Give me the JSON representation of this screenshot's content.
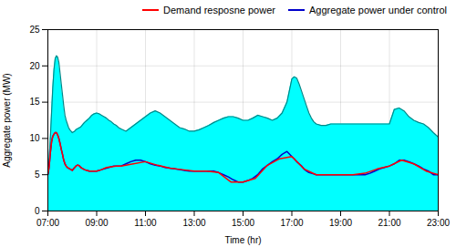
{
  "chart_data": {
    "type": "line",
    "xlabel": "Time (hr)",
    "ylabel": "Aggregate power (MW)",
    "xlim": [
      7.0,
      23.0
    ],
    "ylim": [
      0,
      25
    ],
    "xticks": [
      {
        "value": 7,
        "label": "07:00"
      },
      {
        "value": 9,
        "label": "09:00"
      },
      {
        "value": 11,
        "label": "11:00"
      },
      {
        "value": 13,
        "label": "13:00"
      },
      {
        "value": 15,
        "label": "15:00"
      },
      {
        "value": 17,
        "label": "17:00"
      },
      {
        "value": 19,
        "label": "19:00"
      },
      {
        "value": 21,
        "label": "21:00"
      },
      {
        "value": 23,
        "label": "23:00"
      }
    ],
    "yticks": [
      0,
      5,
      10,
      15,
      20,
      25
    ],
    "grid": true,
    "legend": "upper right",
    "series": [
      {
        "type": "area",
        "color": "#00FFFF",
        "x": [
          7.0,
          7.05,
          7.1,
          7.15,
          7.2,
          7.25,
          7.3,
          7.35,
          7.4,
          7.45,
          7.5,
          7.55,
          7.6,
          7.65,
          7.7,
          7.75,
          7.8,
          7.85,
          7.9,
          7.95,
          8.0,
          8.05,
          8.1,
          8.15,
          8.2,
          8.25,
          8.3,
          8.35,
          8.4,
          8.45,
          8.5,
          8.6,
          8.7,
          8.8,
          8.9,
          9.0,
          9.1,
          9.2,
          9.3,
          9.4,
          9.5,
          9.6,
          9.7,
          9.8,
          9.9,
          10.0,
          10.2,
          10.4,
          10.6,
          10.8,
          11.0,
          11.2,
          11.4,
          11.6,
          11.8,
          12.0,
          12.2,
          12.4,
          12.6,
          12.8,
          13.0,
          13.2,
          13.4,
          13.6,
          13.8,
          14.0,
          14.2,
          14.4,
          14.6,
          14.8,
          15.0,
          15.2,
          15.4,
          15.6,
          15.8,
          16.0,
          16.2,
          16.4,
          16.6,
          16.8,
          17.0,
          17.1,
          17.2,
          17.3,
          17.4,
          17.5,
          17.6,
          17.7,
          17.8,
          17.9,
          18.0,
          18.2,
          18.4,
          18.6,
          18.8,
          19.0,
          19.2,
          19.4,
          19.6,
          19.8,
          20.0,
          20.2,
          20.4,
          20.6,
          20.8,
          21.0,
          21.2,
          21.4,
          21.6,
          21.8,
          22.0,
          22.2,
          22.4,
          22.6,
          22.8,
          23.0
        ],
        "values": [
          5.0,
          7.0,
          10.0,
          13.5,
          17.0,
          19.5,
          21.0,
          21.4,
          21.2,
          20.5,
          19.0,
          17.5,
          16.0,
          14.5,
          13.2,
          12.5,
          12.0,
          11.5,
          11.2,
          11.0,
          10.8,
          10.9,
          11.0,
          11.2,
          11.3,
          11.4,
          11.5,
          11.6,
          11.8,
          12.0,
          12.2,
          12.5,
          12.8,
          13.2,
          13.4,
          13.5,
          13.4,
          13.2,
          13.0,
          12.8,
          12.5,
          12.3,
          12.0,
          11.8,
          11.5,
          11.3,
          11.0,
          11.5,
          12.0,
          12.5,
          13.0,
          13.5,
          13.8,
          13.5,
          13.0,
          12.5,
          12.0,
          11.5,
          11.3,
          11.0,
          11.0,
          11.2,
          11.5,
          11.8,
          12.2,
          12.5,
          12.8,
          13.0,
          13.0,
          12.8,
          12.5,
          12.5,
          12.8,
          13.2,
          13.0,
          12.8,
          12.5,
          12.8,
          13.5,
          15.0,
          18.2,
          18.5,
          18.3,
          17.5,
          16.5,
          15.5,
          14.5,
          13.5,
          12.8,
          12.3,
          12.0,
          11.8,
          11.8,
          12.0,
          12.0,
          12.0,
          12.0,
          12.0,
          12.0,
          12.0,
          12.0,
          12.0,
          12.0,
          12.0,
          12.0,
          12.0,
          14.0,
          14.2,
          13.8,
          13.0,
          12.5,
          12.2,
          12.0,
          11.5,
          10.8,
          10.2
        ]
      },
      {
        "type": "line",
        "color": "#008888",
        "x": [
          7.0,
          7.05,
          7.1,
          7.15,
          7.2,
          7.25,
          7.3,
          7.35,
          7.4,
          7.45,
          7.5,
          7.55,
          7.6,
          7.65,
          7.7,
          7.75,
          7.8,
          7.85,
          7.9,
          7.95,
          8.0,
          8.05,
          8.1,
          8.15,
          8.2,
          8.25,
          8.3,
          8.35,
          8.4,
          8.45,
          8.5,
          8.6,
          8.7,
          8.8,
          8.9,
          9.0,
          9.1,
          9.2,
          9.3,
          9.4,
          9.5,
          9.6,
          9.7,
          9.8,
          9.9,
          10.0,
          10.2,
          10.4,
          10.6,
          10.8,
          11.0,
          11.2,
          11.4,
          11.6,
          11.8,
          12.0,
          12.2,
          12.4,
          12.6,
          12.8,
          13.0,
          13.2,
          13.4,
          13.6,
          13.8,
          14.0,
          14.2,
          14.4,
          14.6,
          14.8,
          15.0,
          15.2,
          15.4,
          15.6,
          15.8,
          16.0,
          16.2,
          16.4,
          16.6,
          16.8,
          17.0,
          17.1,
          17.2,
          17.3,
          17.4,
          17.5,
          17.6,
          17.7,
          17.8,
          17.9,
          18.0,
          18.2,
          18.4,
          18.6,
          18.8,
          19.0,
          19.2,
          19.4,
          19.6,
          19.8,
          20.0,
          20.2,
          20.4,
          20.6,
          20.8,
          21.0,
          21.2,
          21.4,
          21.6,
          21.8,
          22.0,
          22.2,
          22.4,
          22.6,
          22.8,
          23.0
        ],
        "values": [
          5.0,
          7.0,
          10.0,
          13.5,
          17.0,
          19.5,
          21.0,
          21.4,
          21.2,
          20.5,
          19.0,
          17.5,
          16.0,
          14.5,
          13.2,
          12.5,
          12.0,
          11.5,
          11.2,
          11.0,
          10.8,
          10.9,
          11.0,
          11.2,
          11.3,
          11.4,
          11.5,
          11.6,
          11.8,
          12.0,
          12.2,
          12.5,
          12.8,
          13.2,
          13.4,
          13.5,
          13.4,
          13.2,
          13.0,
          12.8,
          12.5,
          12.3,
          12.0,
          11.8,
          11.5,
          11.3,
          11.0,
          11.5,
          12.0,
          12.5,
          13.0,
          13.5,
          13.8,
          13.5,
          13.0,
          12.5,
          12.0,
          11.5,
          11.3,
          11.0,
          11.0,
          11.2,
          11.5,
          11.8,
          12.2,
          12.5,
          12.8,
          13.0,
          13.0,
          12.8,
          12.5,
          12.5,
          12.8,
          13.2,
          13.0,
          12.8,
          12.5,
          12.8,
          13.5,
          15.0,
          18.2,
          18.5,
          18.3,
          17.5,
          16.5,
          15.5,
          14.5,
          13.5,
          12.8,
          12.3,
          12.0,
          11.8,
          11.8,
          12.0,
          12.0,
          12.0,
          12.0,
          12.0,
          12.0,
          12.0,
          12.0,
          12.0,
          12.0,
          12.0,
          12.0,
          12.0,
          14.0,
          14.2,
          13.8,
          13.0,
          12.5,
          12.2,
          12.0,
          11.5,
          10.8,
          10.2
        ]
      },
      {
        "name": "Aggregate power under control",
        "type": "line",
        "color": "#0000CC",
        "x": [
          7.0,
          7.05,
          7.1,
          7.15,
          7.2,
          7.25,
          7.3,
          7.35,
          7.4,
          7.45,
          7.5,
          7.55,
          7.6,
          7.65,
          7.7,
          7.75,
          7.8,
          7.85,
          7.9,
          7.95,
          8.0,
          8.05,
          8.1,
          8.15,
          8.2,
          8.25,
          8.3,
          8.35,
          8.4,
          8.45,
          8.5,
          8.6,
          8.7,
          8.8,
          8.9,
          9.0,
          9.1,
          9.2,
          9.3,
          9.4,
          9.5,
          9.6,
          9.7,
          9.8,
          9.9,
          10.0,
          10.2,
          10.4,
          10.6,
          10.8,
          11.0,
          11.2,
          11.4,
          11.6,
          11.8,
          12.0,
          12.2,
          12.4,
          12.6,
          12.8,
          13.0,
          13.2,
          13.4,
          13.6,
          13.8,
          14.0,
          14.2,
          14.4,
          14.6,
          14.8,
          15.0,
          15.2,
          15.4,
          15.6,
          15.8,
          16.0,
          16.2,
          16.4,
          16.6,
          16.8,
          17.0,
          17.1,
          17.2,
          17.3,
          17.4,
          17.5,
          17.6,
          17.7,
          17.8,
          17.9,
          18.0,
          18.2,
          18.4,
          18.6,
          18.8,
          19.0,
          19.2,
          19.4,
          19.6,
          19.8,
          20.0,
          20.2,
          20.4,
          20.6,
          20.8,
          21.0,
          21.2,
          21.4,
          21.6,
          21.8,
          22.0,
          22.2,
          22.4,
          22.6,
          22.8,
          23.0
        ],
        "values": [
          5.0,
          6.0,
          8.0,
          9.5,
          10.3,
          10.6,
          10.8,
          10.8,
          10.5,
          10.0,
          9.3,
          8.5,
          7.8,
          7.0,
          6.5,
          6.2,
          6.0,
          5.9,
          5.8,
          5.7,
          5.6,
          5.8,
          6.0,
          6.2,
          6.3,
          6.3,
          6.2,
          6.0,
          5.9,
          5.8,
          5.7,
          5.6,
          5.5,
          5.5,
          5.5,
          5.5,
          5.6,
          5.7,
          5.8,
          5.9,
          6.0,
          6.1,
          6.2,
          6.2,
          6.2,
          6.2,
          6.5,
          6.8,
          7.0,
          7.0,
          6.8,
          6.5,
          6.3,
          6.2,
          6.0,
          5.9,
          5.8,
          5.7,
          5.6,
          5.5,
          5.5,
          5.5,
          5.5,
          5.5,
          5.5,
          5.3,
          5.0,
          4.7,
          4.3,
          4.0,
          4.0,
          4.2,
          4.5,
          5.0,
          5.8,
          6.3,
          6.8,
          7.2,
          7.8,
          8.2,
          7.5,
          7.2,
          6.8,
          6.5,
          6.2,
          5.8,
          5.5,
          5.3,
          5.2,
          5.1,
          5.0,
          5.0,
          5.0,
          5.0,
          5.0,
          5.0,
          5.0,
          5.0,
          5.0,
          5.0,
          5.0,
          5.2,
          5.5,
          5.8,
          6.0,
          6.2,
          6.5,
          7.0,
          7.0,
          6.8,
          6.5,
          6.2,
          5.8,
          5.5,
          5.0,
          5.0
        ]
      },
      {
        "name": "Demand resposne power",
        "type": "line",
        "color": "#FF0000",
        "x": [
          7.0,
          7.05,
          7.1,
          7.15,
          7.2,
          7.25,
          7.3,
          7.35,
          7.4,
          7.45,
          7.5,
          7.55,
          7.6,
          7.65,
          7.7,
          7.75,
          7.8,
          7.85,
          7.9,
          7.95,
          8.0,
          8.05,
          8.1,
          8.15,
          8.2,
          8.25,
          8.3,
          8.35,
          8.4,
          8.45,
          8.5,
          8.6,
          8.7,
          8.8,
          8.9,
          9.0,
          9.2,
          9.4,
          9.6,
          9.8,
          10.0,
          10.5,
          11.0,
          11.5,
          12.0,
          12.5,
          13.0,
          13.5,
          14.0,
          14.5,
          15.0,
          15.5,
          16.0,
          16.5,
          17.0,
          17.5,
          18.0,
          18.5,
          19.0,
          19.5,
          20.0,
          20.5,
          21.0,
          21.5,
          22.0,
          22.5,
          23.0
        ],
        "values": [
          5.0,
          6.0,
          8.0,
          9.5,
          10.3,
          10.6,
          10.8,
          10.8,
          10.5,
          10.0,
          9.3,
          8.5,
          7.8,
          7.0,
          6.5,
          6.2,
          6.0,
          5.9,
          5.8,
          5.7,
          5.6,
          5.8,
          6.0,
          6.2,
          6.3,
          6.3,
          6.2,
          6.0,
          5.9,
          5.8,
          5.7,
          5.6,
          5.5,
          5.5,
          5.5,
          5.5,
          5.7,
          6.0,
          6.1,
          6.2,
          6.2,
          6.5,
          6.8,
          6.3,
          5.9,
          5.7,
          5.5,
          5.5,
          5.3,
          4.0,
          4.0,
          4.5,
          6.3,
          7.2,
          7.5,
          5.8,
          5.0,
          5.0,
          5.0,
          5.0,
          5.2,
          5.8,
          6.2,
          7.0,
          6.5,
          5.5,
          5.0
        ]
      }
    ]
  }
}
